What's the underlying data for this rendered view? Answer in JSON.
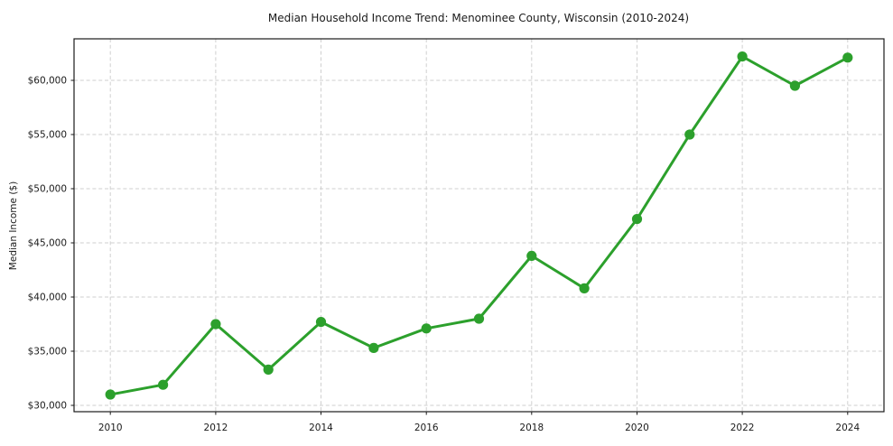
{
  "figure": {
    "title": "Median Household Income Trend: Menominee County, Wisconsin (2010-2024)",
    "ylabel": "Median Income ($)"
  },
  "chart_data": {
    "type": "line",
    "title": "Median Household Income Trend: Menominee County, Wisconsin (2010-2024)",
    "xlabel": "",
    "ylabel": "Median Income ($)",
    "x": [
      2010,
      2011,
      2012,
      2013,
      2014,
      2015,
      2016,
      2017,
      2018,
      2019,
      2020,
      2021,
      2022,
      2023,
      2024
    ],
    "y": [
      31000,
      31900,
      37500,
      33300,
      37700,
      35300,
      37100,
      38000,
      43800,
      40800,
      47200,
      55000,
      62200,
      59500,
      62100
    ],
    "x_ticks": [
      2010,
      2012,
      2014,
      2016,
      2018,
      2020,
      2022,
      2024
    ],
    "x_tick_labels": [
      "2010",
      "2012",
      "2014",
      "2016",
      "2018",
      "2020",
      "2022",
      "2024"
    ],
    "y_ticks": [
      30000,
      35000,
      40000,
      45000,
      50000,
      55000,
      60000
    ],
    "y_tick_labels": [
      "$30,000",
      "$35,000",
      "$40,000",
      "$45,000",
      "$50,000",
      "$55,000",
      "$60,000"
    ],
    "xlim": [
      2009.31,
      2024.69
    ],
    "ylim": [
      29420,
      63830
    ],
    "grid": true,
    "grid_style": "dashed",
    "legend": "none",
    "line_color": "#2ca02c",
    "marker_color": "#2ca02c",
    "marker": "o",
    "grid_color": "#cfcfcf",
    "axis_color": "#1a1a1a",
    "text_color": "#1a1a1a"
  }
}
